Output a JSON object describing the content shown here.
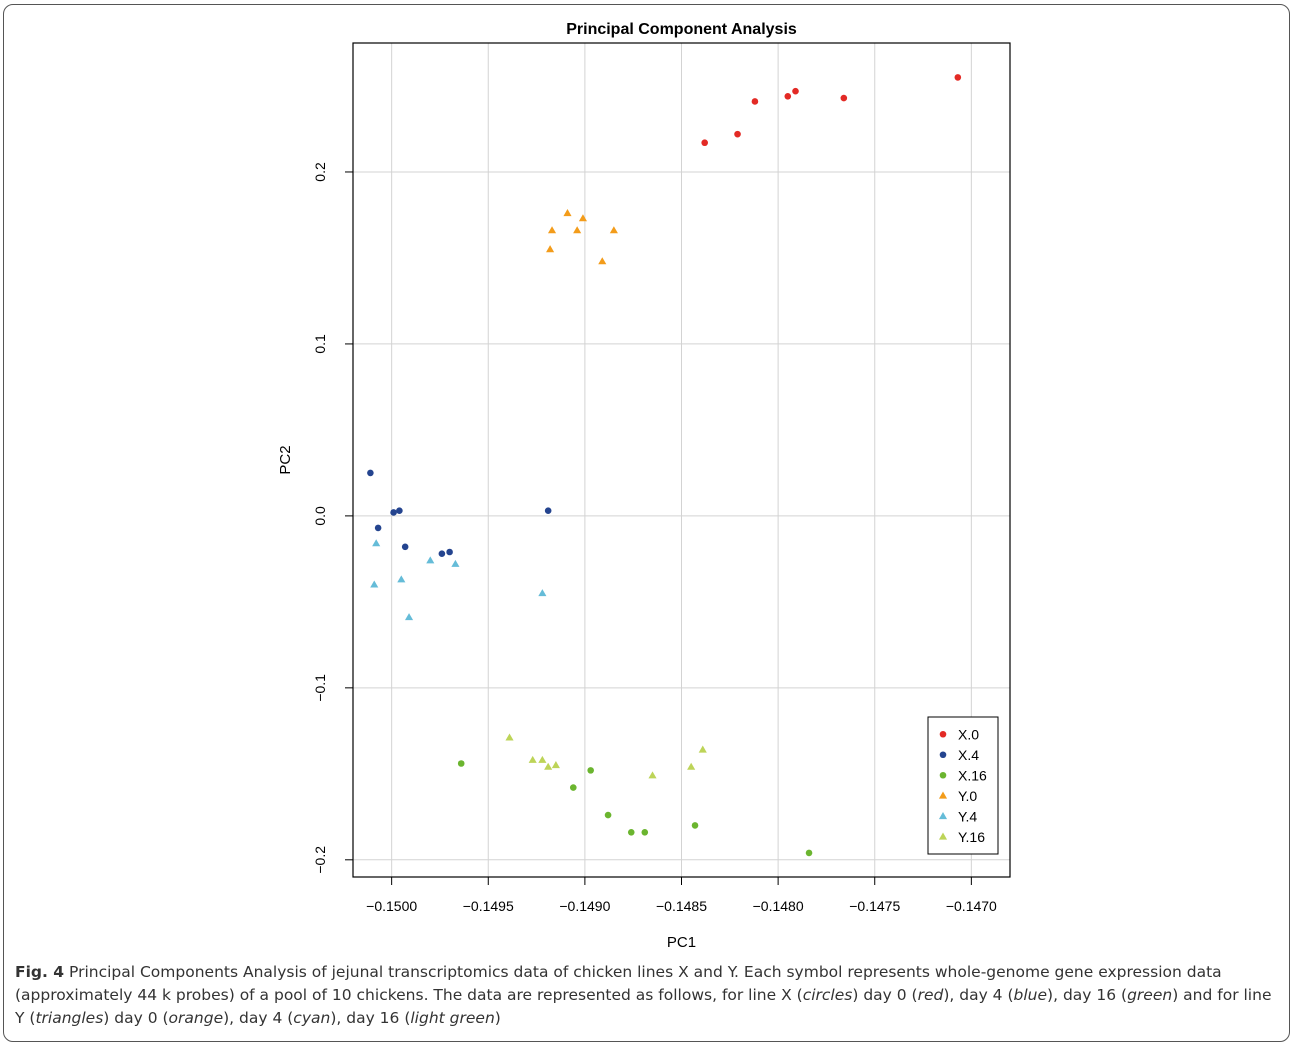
{
  "chart_data": {
    "type": "scatter",
    "title": "Principal Component Analysis",
    "xlabel": "PC1",
    "ylabel": "PC2",
    "xlim": [
      -0.1502,
      -0.1468
    ],
    "ylim": [
      -0.21,
      0.275
    ],
    "x_ticks": [
      -0.15,
      -0.1495,
      -0.149,
      -0.1485,
      -0.148,
      -0.1475,
      -0.147
    ],
    "x_tick_labels": [
      "−0.1500",
      "−0.1495",
      "−0.1490",
      "−0.1485",
      "−0.1480",
      "−0.1475",
      "−0.1470"
    ],
    "y_ticks": [
      -0.2,
      -0.1,
      0.0,
      0.1,
      0.2
    ],
    "y_tick_labels": [
      "−0.2",
      "−0.1",
      "0.0",
      "0.1",
      "0.2"
    ],
    "grid": true,
    "legend_position": "bottom-right",
    "series": [
      {
        "name": "X.0",
        "marker": "circle",
        "color": "#e32a25",
        "points": [
          [
            -0.14838,
            0.217
          ],
          [
            -0.14821,
            0.222
          ],
          [
            -0.14812,
            0.241
          ],
          [
            -0.14795,
            0.244
          ],
          [
            -0.14791,
            0.247
          ],
          [
            -0.14766,
            0.243
          ],
          [
            -0.14707,
            0.255
          ]
        ]
      },
      {
        "name": "X.4",
        "marker": "circle",
        "color": "#24448f",
        "points": [
          [
            -0.15011,
            0.025
          ],
          [
            -0.14999,
            0.002
          ],
          [
            -0.14996,
            0.003
          ],
          [
            -0.15007,
            -0.007
          ],
          [
            -0.14993,
            -0.018
          ],
          [
            -0.14974,
            -0.022
          ],
          [
            -0.1497,
            -0.021
          ],
          [
            -0.14919,
            0.003
          ]
        ]
      },
      {
        "name": "X.16",
        "marker": "circle",
        "color": "#6bb52f",
        "points": [
          [
            -0.14964,
            -0.144
          ],
          [
            -0.14906,
            -0.158
          ],
          [
            -0.14897,
            -0.148
          ],
          [
            -0.14888,
            -0.174
          ],
          [
            -0.14876,
            -0.184
          ],
          [
            -0.14869,
            -0.184
          ],
          [
            -0.14843,
            -0.18
          ],
          [
            -0.14784,
            -0.196
          ]
        ]
      },
      {
        "name": "Y.0",
        "marker": "triangle",
        "color": "#f39c1a",
        "points": [
          [
            -0.14909,
            0.176
          ],
          [
            -0.14901,
            0.173
          ],
          [
            -0.14904,
            0.166
          ],
          [
            -0.14917,
            0.166
          ],
          [
            -0.14918,
            0.155
          ],
          [
            -0.14891,
            0.148
          ],
          [
            -0.14885,
            0.166
          ]
        ]
      },
      {
        "name": "Y.4",
        "marker": "triangle",
        "color": "#65bcd8",
        "points": [
          [
            -0.15008,
            -0.016
          ],
          [
            -0.15009,
            -0.04
          ],
          [
            -0.14995,
            -0.037
          ],
          [
            -0.14991,
            -0.059
          ],
          [
            -0.1498,
            -0.026
          ],
          [
            -0.14967,
            -0.028
          ],
          [
            -0.14922,
            -0.045
          ]
        ]
      },
      {
        "name": "Y.16",
        "marker": "triangle",
        "color": "#bdd458",
        "points": [
          [
            -0.14939,
            -0.129
          ],
          [
            -0.14927,
            -0.142
          ],
          [
            -0.14922,
            -0.142
          ],
          [
            -0.14919,
            -0.146
          ],
          [
            -0.14915,
            -0.145
          ],
          [
            -0.14865,
            -0.151
          ],
          [
            -0.14845,
            -0.146
          ],
          [
            -0.14839,
            -0.136
          ]
        ]
      }
    ]
  },
  "caption": {
    "label": "Fig. 4",
    "text_a": " Principal Components Analysis of jejunal transcriptomics data of chicken lines X and Y. Each symbol represents whole-genome gene expression data (approximately 44 k probes) of a pool of 10 chickens. The data are represented as follows, for line X (",
    "circles": "circles",
    "text_b": ") day 0 (",
    "red": "red",
    "text_c": "), day 4 (",
    "blue": "blue",
    "text_d": "), day 16 (",
    "green": "green",
    "text_e": ") and for line Y (",
    "triangles": "triangles",
    "text_f": ") day 0 (",
    "orange": "orange",
    "text_g": "), day 4 (",
    "cyan": "cyan",
    "text_h": "), day 16 (",
    "light_green": "light green",
    "text_i": ")"
  }
}
